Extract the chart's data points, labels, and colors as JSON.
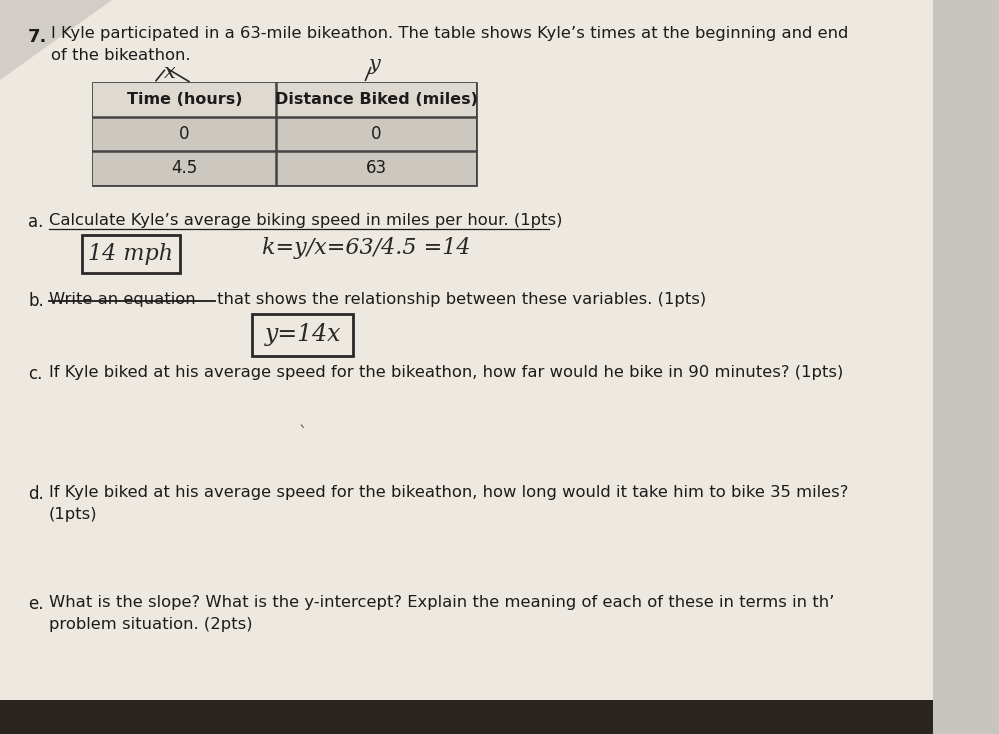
{
  "bg_top_color": "#c8c4be",
  "bg_bottom_color": "#1a1a1a",
  "paper_color": "#ede8e0",
  "paper_color2": "#e8e3db",
  "question_number": "7.",
  "intro_text1": "I Kyle participated in a 63-mile bikeathon. The table shows Kyle’s times at the beginning and end",
  "intro_text2": "of the bikeathon.",
  "table_header": [
    "Time (hours)",
    "Distance Biked (miles)"
  ],
  "table_rows": [
    [
      "0",
      "0"
    ],
    [
      "4.5",
      "63"
    ]
  ],
  "part_a_label": "a.",
  "part_a_text": "Calculate Kyle’s average biking speed in miles per hour. (1pts)",
  "part_a_answer_box": "14 mph",
  "part_a_work": "k=y/x=63/4.5 =14",
  "part_b_label": "b.",
  "part_b_text1": "Write an equation",
  "part_b_text2": "that shows the relationship between these variables. (1pts)",
  "part_b_answer_box": "y=14x",
  "part_c_label": "c.",
  "part_c_text": "If Kyle biked at his average speed for the bikeathon, how far would he bike in 90 minutes? (1pts)",
  "part_d_label": "d.",
  "part_d_text": "If Kyle biked at his average speed for the bikeathon, how long would it take him to bike 35 miles?",
  "part_d_pts": "(1pts)",
  "part_e_label": "e.",
  "part_e_text1": "What is the slope? What is the y-intercept? Explain the meaning of each of these in terms in th’",
  "part_e_text2": "problem situation. (2pts)",
  "text_color": "#1c1c1c",
  "handwriting_color": "#2a2828",
  "table_border_color": "#444444",
  "table_header_bg": "#dedad2",
  "table_row_bg": "#ccc8c0",
  "box_border_color": "#2a2828",
  "underline_color": "#1c1c1c",
  "strikethrough_color": "#1c1c1c"
}
